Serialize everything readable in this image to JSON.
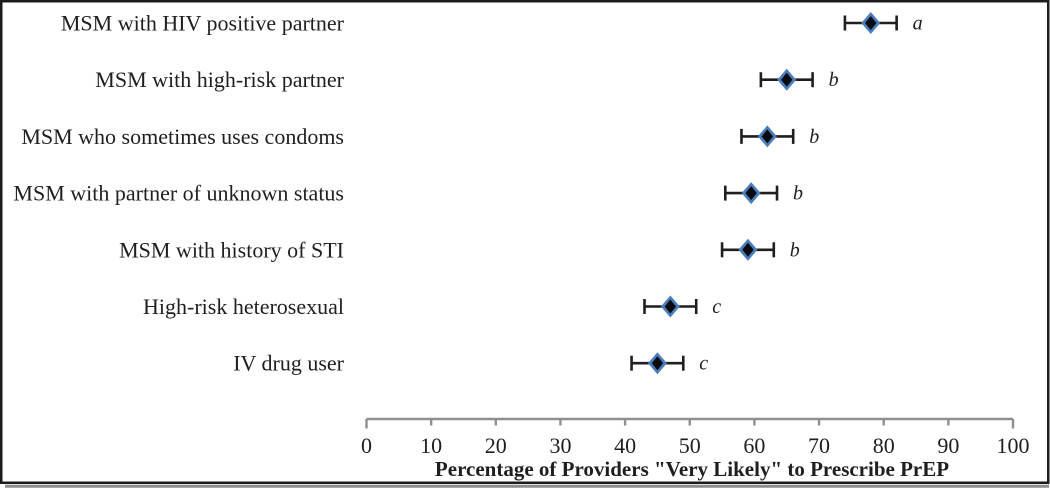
{
  "chart_data": {
    "type": "scatter",
    "subtype": "horizontal-dot-plot-with-error-bars",
    "title": "",
    "xlabel": "Percentage of Providers \"Very Likely\" to Prescribe PrEP",
    "ylabel": "",
    "xlim": [
      0,
      100
    ],
    "xticks": [
      0,
      10,
      20,
      30,
      40,
      50,
      60,
      70,
      80,
      90,
      100
    ],
    "grid": "off",
    "legend": "none",
    "rows": [
      {
        "label": "MSM with HIV positive partner",
        "value": 78,
        "ci_low": 74,
        "ci_high": 82,
        "sig_group": "a"
      },
      {
        "label": "MSM with high-risk partner",
        "value": 65,
        "ci_low": 61,
        "ci_high": 69,
        "sig_group": "b"
      },
      {
        "label": "MSM who sometimes uses condoms",
        "value": 62,
        "ci_low": 58,
        "ci_high": 66,
        "sig_group": "b"
      },
      {
        "label": "MSM with partner of unknown status",
        "value": 59.5,
        "ci_low": 55.5,
        "ci_high": 63.5,
        "sig_group": "b"
      },
      {
        "label": "MSM with history of STI",
        "value": 59,
        "ci_low": 55,
        "ci_high": 63,
        "sig_group": "b"
      },
      {
        "label": "High-risk heterosexual",
        "value": 47,
        "ci_low": 43,
        "ci_high": 51,
        "sig_group": "c"
      },
      {
        "label": "IV drug user",
        "value": 45,
        "ci_low": 41,
        "ci_high": 49,
        "sig_group": "c"
      }
    ],
    "colors": {
      "marker_fill": "#0a0a12",
      "marker_border": "#4a7ebb",
      "error_bar": "#1f1f1f",
      "axis": "#8f8f8f",
      "text": "#1f1f1f",
      "frame": "#1c1c1c",
      "frame_shadow": "#8d8d8d",
      "background": "#ffffff"
    }
  }
}
